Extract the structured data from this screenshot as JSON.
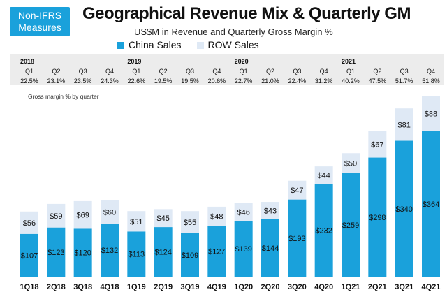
{
  "badge": {
    "line1": "Non-IFRS",
    "line2": "Measures"
  },
  "chart_data": {
    "type": "bar",
    "stacked": true,
    "title": "Geographical Revenue Mix & Quarterly GM",
    "subtitle": "US$M in Revenue and Quarterly Gross Margin %",
    "categories": [
      "1Q18",
      "2Q18",
      "3Q18",
      "4Q18",
      "1Q19",
      "2Q19",
      "3Q19",
      "4Q19",
      "1Q20",
      "2Q20",
      "3Q20",
      "4Q20",
      "1Q21",
      "2Q21",
      "3Q21",
      "4Q21"
    ],
    "series": [
      {
        "name": "China Sales",
        "color": "#1aa1db",
        "values": [
          107,
          123,
          120,
          132,
          113,
          124,
          109,
          127,
          139,
          144,
          193,
          232,
          259,
          298,
          340,
          364
        ],
        "labels": [
          "$107",
          "$123",
          "$120",
          "$132",
          "$113",
          "$124",
          "$109",
          "$127",
          "$139",
          "$144",
          "$193",
          "$232",
          "$259",
          "$298",
          "$340",
          "$364"
        ]
      },
      {
        "name": "ROW Sales",
        "color": "#dfe9f5",
        "values": [
          56,
          59,
          69,
          60,
          51,
          45,
          55,
          48,
          46,
          43,
          47,
          44,
          50,
          67,
          81,
          88
        ],
        "labels": [
          "$56",
          "$59",
          "$69",
          "$60",
          "$51",
          "$45",
          "$55",
          "$48",
          "$46",
          "$43",
          "$47",
          "$44",
          "$50",
          "$67",
          "$81",
          "$88"
        ]
      }
    ],
    "gross_margin": {
      "years": [
        "2018",
        "2019",
        "2020",
        "2021"
      ],
      "quarters": [
        "Q1",
        "Q2",
        "Q3",
        "Q4",
        "Q1",
        "Q2",
        "Q3",
        "Q4",
        "Q1",
        "Q2",
        "Q3",
        "Q4",
        "Q1",
        "Q2",
        "Q3",
        "Q4"
      ],
      "values": [
        "22.5%",
        "23.1%",
        "23.5%",
        "24.3%",
        "22.6%",
        "19.5%",
        "19.5%",
        "20.6%",
        "22.7%",
        "21.0%",
        "22.4%",
        "31.2%",
        "40.2%",
        "47.5%",
        "51.7%",
        "51.8%"
      ],
      "note": "Gross margin % by quarter"
    },
    "ylim": [
      0,
      460
    ],
    "legend": "top-center"
  }
}
